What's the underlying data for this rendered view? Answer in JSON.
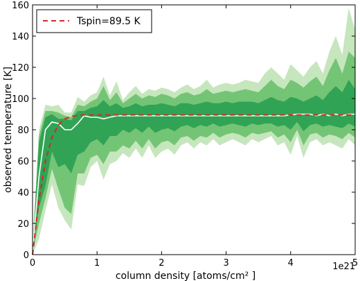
{
  "chart_data": {
    "type": "area",
    "xlabel": "column density [atoms/cm² ]",
    "ylabel": "observed temperature [K]",
    "x_multiplier_label": "1e21",
    "xlim": [
      0,
      5
    ],
    "ylim": [
      0,
      160
    ],
    "x_ticks": [
      "0",
      "1",
      "2",
      "3",
      "4",
      "5"
    ],
    "y_ticks": [
      "0",
      "20",
      "40",
      "60",
      "80",
      "100",
      "120",
      "140",
      "160"
    ],
    "grid": false,
    "legend_position": "top-left",
    "colors": {
      "outer_band": "#c6e6bd",
      "middle_band": "#74c476",
      "inner_band": "#31a354",
      "median_line": "#ffffff",
      "model_line": "#d62728"
    },
    "x": [
      0.0,
      0.1,
      0.2,
      0.3,
      0.4,
      0.5,
      0.6,
      0.7,
      0.8,
      0.9,
      1.0,
      1.1,
      1.2,
      1.3,
      1.4,
      1.5,
      1.6,
      1.7,
      1.8,
      1.9,
      2.0,
      2.1,
      2.2,
      2.3,
      2.4,
      2.5,
      2.6,
      2.7,
      2.8,
      2.9,
      3.0,
      3.1,
      3.2,
      3.3,
      3.4,
      3.5,
      3.6,
      3.7,
      3.8,
      3.9,
      4.0,
      4.1,
      4.2,
      4.3,
      4.4,
      4.5,
      4.6,
      4.7,
      4.8,
      4.9,
      5.0
    ],
    "bands": [
      {
        "level": "outer",
        "upper": [
          6,
          80,
          96,
          95,
          96,
          91,
          91,
          101,
          98,
          102,
          104,
          114,
          102,
          111,
          99,
          104,
          108,
          103,
          106,
          105,
          107,
          106,
          104,
          107,
          109,
          106,
          108,
          112,
          107,
          109,
          110,
          109,
          110,
          112,
          111,
          110,
          116,
          120,
          116,
          112,
          122,
          118,
          114,
          120,
          124,
          116,
          130,
          140,
          128,
          158,
          144
        ],
        "lower": [
          0,
          10,
          28,
          45,
          30,
          22,
          16,
          45,
          44,
          56,
          60,
          48,
          58,
          60,
          65,
          62,
          68,
          62,
          70,
          62,
          66,
          68,
          64,
          70,
          72,
          68,
          72,
          70,
          74,
          70,
          72,
          74,
          72,
          70,
          74,
          72,
          74,
          76,
          70,
          72,
          64,
          76,
          62,
          72,
          74,
          70,
          72,
          70,
          68,
          74,
          70
        ]
      },
      {
        "level": "middle",
        "upper": [
          4,
          76,
          92,
          92,
          91,
          89,
          88,
          96,
          95,
          98,
          100,
          108,
          99,
          104,
          97,
          100,
          103,
          100,
          102,
          101,
          103,
          102,
          100,
          103,
          104,
          102,
          103,
          106,
          103,
          104,
          105,
          104,
          105,
          106,
          105,
          104,
          108,
          112,
          108,
          106,
          112,
          110,
          107,
          111,
          114,
          108,
          118,
          126,
          116,
          130,
          126
        ],
        "lower": [
          1,
          20,
          36,
          55,
          42,
          30,
          26,
          52,
          52,
          62,
          64,
          58,
          66,
          66,
          70,
          68,
          73,
          68,
          74,
          68,
          72,
          73,
          70,
          75,
          76,
          73,
          76,
          75,
          78,
          75,
          77,
          78,
          77,
          75,
          78,
          77,
          78,
          79,
          75,
          77,
          72,
          80,
          70,
          77,
          78,
          75,
          77,
          76,
          74,
          78,
          75
        ]
      },
      {
        "level": "inner",
        "upper": [
          2,
          72,
          88,
          90,
          87,
          87,
          86,
          92,
          92,
          94,
          95,
          99,
          95,
          97,
          94,
          95,
          97,
          95,
          96,
          96,
          97,
          96,
          95,
          97,
          97,
          96,
          97,
          98,
          97,
          97,
          98,
          97,
          98,
          98,
          98,
          97,
          99,
          101,
          99,
          98,
          101,
          100,
          98,
          100,
          102,
          99,
          104,
          108,
          104,
          112,
          106
        ],
        "lower": [
          2,
          30,
          44,
          66,
          56,
          58,
          52,
          64,
          66,
          72,
          74,
          70,
          76,
          76,
          80,
          78,
          81,
          78,
          82,
          78,
          80,
          81,
          79,
          82,
          83,
          81,
          83,
          82,
          84,
          82,
          83,
          84,
          83,
          82,
          84,
          83,
          84,
          84,
          82,
          83,
          80,
          85,
          79,
          83,
          84,
          82,
          83,
          82,
          81,
          84,
          82
        ]
      }
    ],
    "series": [
      {
        "style": "white-solid",
        "values": [
          2,
          50,
          80,
          85,
          84,
          80,
          80,
          84,
          89,
          88,
          88,
          87,
          88,
          89,
          89,
          89,
          89,
          89,
          89,
          89,
          89,
          89,
          89,
          89,
          89,
          89,
          89,
          89,
          89,
          89,
          89,
          89,
          89,
          89,
          89,
          89,
          89,
          89,
          89,
          89,
          89.5,
          90,
          90,
          90,
          89,
          90,
          89,
          90,
          89,
          90,
          90
        ]
      },
      {
        "name": "Tspin=89.5 K",
        "style": "red-dashed",
        "values": [
          0,
          35,
          60,
          75,
          83,
          87,
          88.5,
          89.2,
          89.5,
          89.5,
          89.5,
          89.5,
          89.5,
          89.5,
          89.5,
          89.5,
          89.5,
          89.5,
          89.5,
          89.5,
          89.5,
          89.5,
          89.5,
          89.5,
          89.5,
          89.5,
          89.5,
          89.5,
          89.5,
          89.5,
          89.5,
          89.5,
          89.5,
          89.5,
          89.5,
          89.5,
          89.5,
          89.5,
          89.5,
          89.5,
          89.5,
          89.5,
          89.5,
          89.5,
          89.5,
          89.5,
          89.5,
          89.5,
          89.5,
          89.5,
          89.5
        ]
      }
    ],
    "legend": [
      {
        "label": "Tspin=89.5 K",
        "style": "red-dashed"
      }
    ]
  }
}
